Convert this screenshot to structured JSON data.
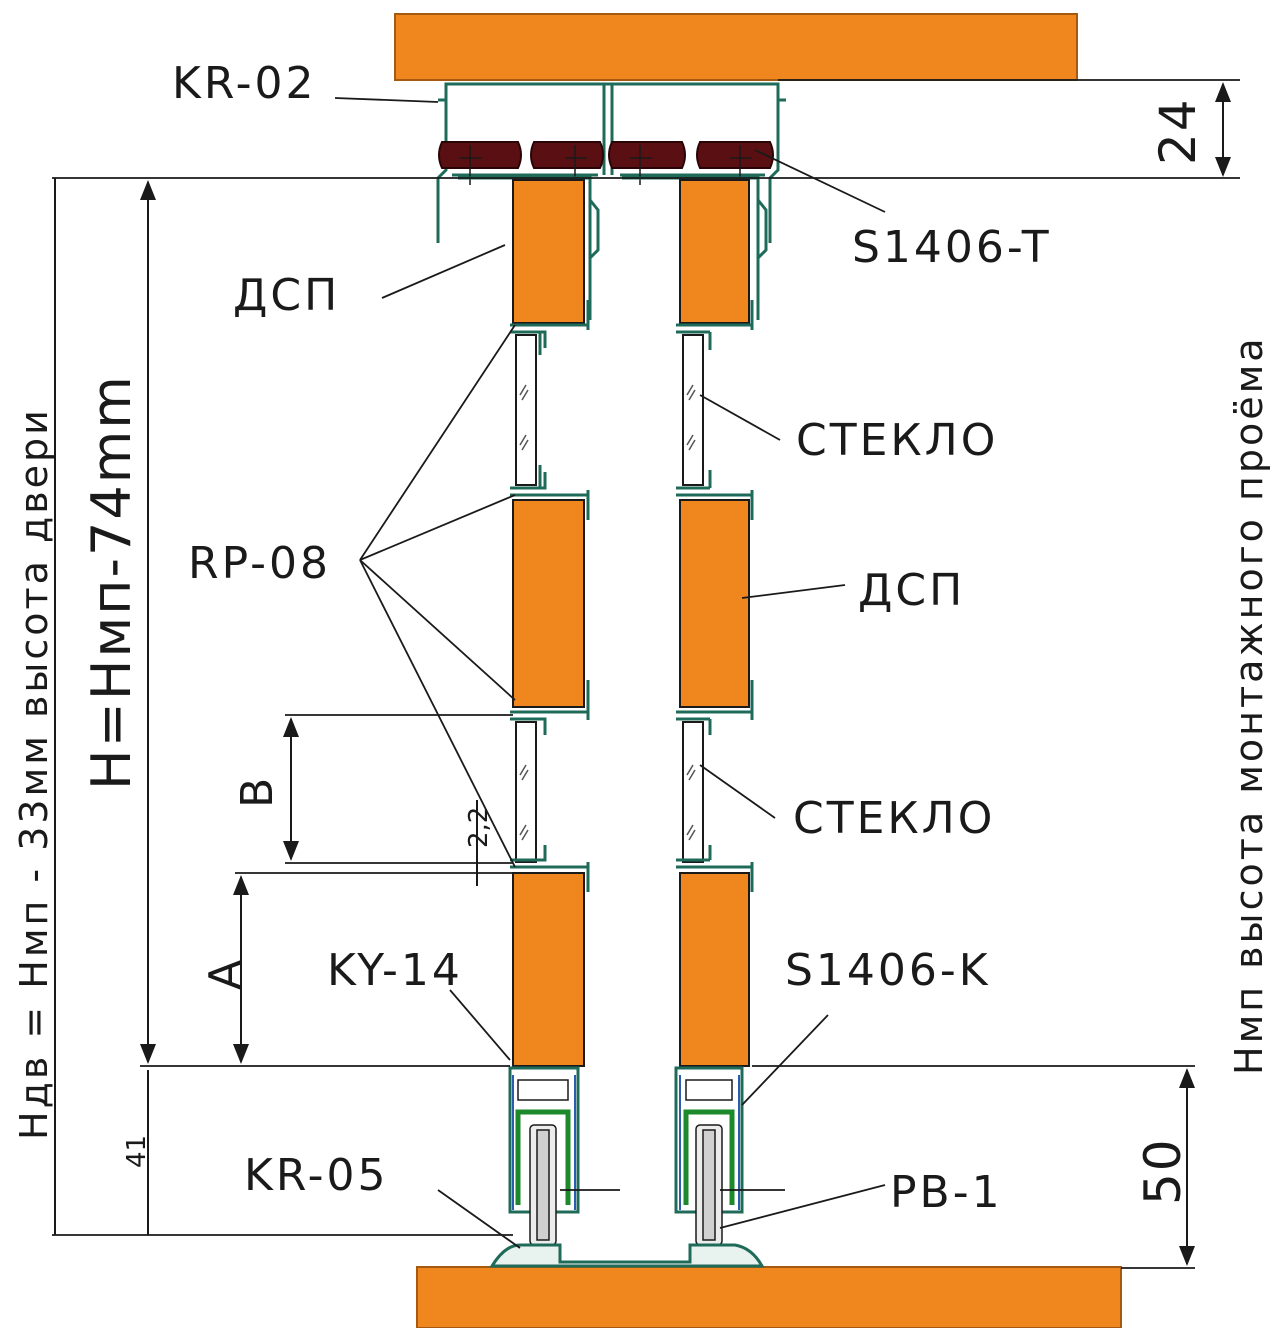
{
  "labels": {
    "kr02": "KR-02",
    "s1406t": "S1406-T",
    "dsp_top": "ДСП",
    "dsp_mid": "ДСП",
    "glass_top": "СТЕКЛО",
    "glass_bottom": "СТЕКЛО",
    "rp08": "RP-08",
    "ky14": "KY-14",
    "s1406k": "S1406-K",
    "kr05": "KR-05",
    "pb1": "PB-1"
  },
  "dimensions": {
    "top_gap": "24",
    "bottom_gap": "50",
    "bottom_41": "41",
    "gap_2_2": "2,2",
    "a": "A",
    "b": "B",
    "h_formula": "H=Hмп-74mm",
    "door_height": "Hдв = Hмп  -  33мм    высота двери",
    "opening_height": "Hмп высота монтажного проёма"
  },
  "colors": {
    "wood": "#f0861e",
    "wood_edge": "#a65a10",
    "brush": "#5a0f12",
    "profile": "#1f6b5a",
    "glass": "#ffffff",
    "roller_green": "#1c8a2a",
    "roller_blue": "#2a5db0",
    "line": "#1a1a1a"
  }
}
